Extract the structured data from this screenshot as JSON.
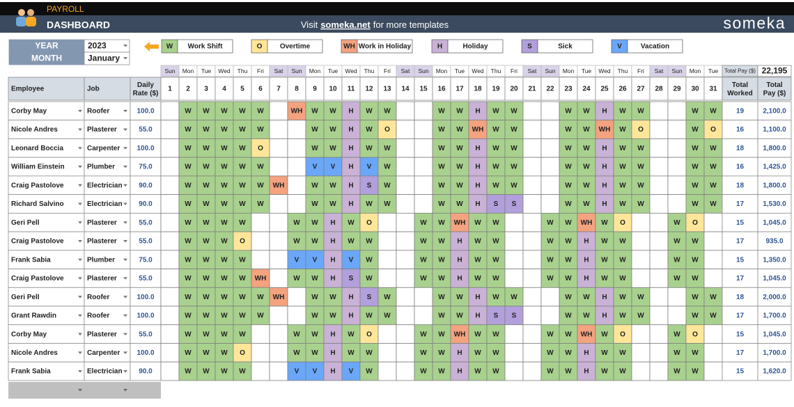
{
  "header": {
    "section": "PAYROLL",
    "title": "DASHBOARD",
    "visit_prefix": "Visit",
    "visit_link": "someka.net",
    "visit_suffix": "for more templates",
    "brand": "someka"
  },
  "filters": {
    "year_label": "YEAR",
    "year": 2023,
    "month_label": "MONTH",
    "month": "January"
  },
  "legend": [
    {
      "code": "W",
      "label": "Work Shift",
      "color": "#a9d18e"
    },
    {
      "code": "O",
      "label": "Overtime",
      "color": "#ffe699"
    },
    {
      "code": "WH",
      "label": "Work in Holiday",
      "color": "#f4a27f"
    },
    {
      "code": "H",
      "label": "Holiday",
      "color": "#c9b2d6"
    },
    {
      "code": "S",
      "label": "Sick",
      "color": "#b1a0db"
    },
    {
      "code": "V",
      "label": "Vacation",
      "color": "#6aa7f8"
    }
  ],
  "summary": {
    "label": "Total Pay ($)",
    "value": "22,195"
  },
  "table": {
    "columns": {
      "employee": "Employee",
      "job": "Job",
      "rate": "Daily Rate ($)",
      "total_worked": "Total Worked",
      "total_pay": "Total Pay ($)"
    },
    "weekend_color": "#d9d2e9",
    "weekdays": [
      "Sun",
      "Mon",
      "Tue",
      "Wed",
      "Thu",
      "Fri",
      "Sat",
      "Sun",
      "Mon",
      "Tue",
      "Wed",
      "Thu",
      "Fri",
      "Sat",
      "Sun",
      "Mon",
      "Tue",
      "Wed",
      "Thu",
      "Fri",
      "Sat",
      "Sun",
      "Mon",
      "Tue",
      "Wed",
      "Thu",
      "Fri",
      "Sat",
      "Sun",
      "Mon",
      "Tue"
    ],
    "days": [
      1,
      2,
      3,
      4,
      5,
      6,
      7,
      8,
      9,
      10,
      11,
      12,
      13,
      14,
      15,
      16,
      17,
      18,
      19,
      20,
      21,
      22,
      23,
      24,
      25,
      26,
      27,
      28,
      29,
      30,
      31
    ],
    "rows": [
      {
        "employee": "Corby May",
        "job": "Roofer",
        "rate": "100.0",
        "days": [
          null,
          "W",
          "W",
          "W",
          "W",
          "W",
          null,
          "WH",
          "W",
          "W",
          "H",
          "W",
          "W",
          null,
          null,
          "W",
          "W",
          "H",
          "W",
          "W",
          null,
          null,
          "W",
          "W",
          "H",
          "W",
          "W",
          null,
          null,
          "W",
          "W"
        ],
        "total_worked": 19,
        "total_pay": "2,100.0"
      },
      {
        "employee": "Nicole Andres",
        "job": "Plasterer",
        "rate": "55.0",
        "days": [
          null,
          "W",
          "W",
          "W",
          "W",
          "W",
          null,
          null,
          "W",
          "W",
          "H",
          "W",
          "O",
          null,
          null,
          "W",
          "W",
          "WH",
          "W",
          "W",
          null,
          null,
          "W",
          "W",
          "WH",
          "W",
          "O",
          null,
          null,
          "W",
          "O"
        ],
        "total_worked": 16,
        "total_pay": "1,100.0"
      },
      {
        "employee": "Leonard Boccia",
        "job": "Carpenter",
        "rate": "100.0",
        "days": [
          null,
          "W",
          "W",
          "W",
          "W",
          "O",
          null,
          null,
          "W",
          "W",
          "H",
          "W",
          "W",
          null,
          null,
          "W",
          "W",
          "H",
          "W",
          "W",
          null,
          null,
          "W",
          "W",
          "H",
          "W",
          "W",
          null,
          null,
          "W",
          "W"
        ],
        "total_worked": 18,
        "total_pay": "1,800.0"
      },
      {
        "employee": "William Einstein",
        "job": "Plumber",
        "rate": "75.0",
        "days": [
          null,
          "W",
          "W",
          "W",
          "W",
          "W",
          null,
          null,
          "V",
          "V",
          "H",
          "V",
          "W",
          null,
          null,
          "W",
          "W",
          "H",
          "W",
          "W",
          null,
          null,
          "W",
          "W",
          "H",
          "W",
          "W",
          null,
          null,
          "W",
          "W"
        ],
        "total_worked": 16,
        "total_pay": "1,425.0"
      },
      {
        "employee": "Craig Pastolove",
        "job": "Electrician",
        "rate": "90.0",
        "days": [
          null,
          "W",
          "W",
          "W",
          "W",
          "W",
          "WH",
          null,
          "W",
          "W",
          "H",
          "S",
          "W",
          null,
          null,
          "W",
          "W",
          "H",
          "W",
          "W",
          null,
          null,
          "W",
          "W",
          "H",
          "W",
          "W",
          null,
          null,
          "W",
          "W"
        ],
        "total_worked": 18,
        "total_pay": "1,800.0"
      },
      {
        "employee": "Richard Salvino",
        "job": "Electrician",
        "rate": "90.0",
        "days": [
          null,
          "W",
          "W",
          "W",
          "W",
          "W",
          null,
          null,
          "W",
          "W",
          "H",
          "W",
          "W",
          null,
          null,
          "W",
          "W",
          "H",
          "S",
          "S",
          null,
          null,
          "W",
          "W",
          "H",
          "W",
          "W",
          null,
          null,
          "W",
          "W"
        ],
        "total_worked": 17,
        "total_pay": "1,530.0"
      },
      {
        "employee": "Geri Pell",
        "job": "Plasterer",
        "rate": "55.0",
        "days": [
          null,
          "W",
          "W",
          "W",
          "W",
          null,
          null,
          "W",
          "W",
          "H",
          "W",
          "O",
          null,
          null,
          "W",
          "W",
          "WH",
          "W",
          "W",
          null,
          null,
          "W",
          "W",
          "WH",
          "W",
          "O",
          null,
          null,
          "W",
          "O",
          null
        ],
        "total_worked": 15,
        "total_pay": "1,045.0"
      },
      {
        "employee": "Craig Pastolove",
        "job": "Plasterer",
        "rate": "55.0",
        "days": [
          null,
          "W",
          "W",
          "W",
          "O",
          null,
          null,
          "W",
          "W",
          "H",
          "W",
          "W",
          null,
          null,
          "W",
          "W",
          "H",
          "W",
          "W",
          null,
          null,
          "W",
          "W",
          "H",
          "W",
          "W",
          null,
          null,
          "W",
          "W",
          null
        ],
        "total_worked": 17,
        "total_pay": "935.0"
      },
      {
        "employee": "Frank Sabia",
        "job": "Plumber",
        "rate": "75.0",
        "days": [
          null,
          "W",
          "W",
          "W",
          "W",
          null,
          null,
          "V",
          "V",
          "H",
          "V",
          "W",
          null,
          null,
          "W",
          "W",
          "H",
          "W",
          "W",
          null,
          null,
          "W",
          "W",
          "H",
          "W",
          "W",
          null,
          null,
          "W",
          "W",
          null
        ],
        "total_worked": 15,
        "total_pay": "1,350.0"
      },
      {
        "employee": "Craig Pastolove",
        "job": "Plasterer",
        "rate": "55.0",
        "days": [
          null,
          "W",
          "W",
          "W",
          "W",
          "WH",
          null,
          "W",
          "W",
          "H",
          "S",
          "W",
          null,
          null,
          "W",
          "W",
          "H",
          "W",
          "W",
          null,
          null,
          "W",
          "W",
          "H",
          "W",
          "W",
          null,
          null,
          "W",
          "W",
          null
        ],
        "total_worked": 17,
        "total_pay": "1,045.0"
      },
      {
        "employee": "Geri Pell",
        "job": "Roofer",
        "rate": "100.0",
        "days": [
          null,
          "W",
          "W",
          "W",
          "W",
          "W",
          "WH",
          null,
          "W",
          "W",
          "H",
          "S",
          "W",
          null,
          null,
          "W",
          "W",
          "H",
          "W",
          "W",
          null,
          null,
          "W",
          "W",
          "H",
          "W",
          "W",
          null,
          null,
          "W",
          "W"
        ],
        "total_worked": 18,
        "total_pay": "2,000.0"
      },
      {
        "employee": "Grant Rawdin",
        "job": "Roofer",
        "rate": "100.0",
        "days": [
          null,
          "W",
          "W",
          "W",
          "W",
          "W",
          null,
          null,
          "W",
          "W",
          "H",
          "W",
          "W",
          null,
          null,
          "W",
          "W",
          "H",
          "S",
          "S",
          null,
          null,
          "W",
          "W",
          "H",
          "W",
          "W",
          null,
          null,
          "W",
          "W"
        ],
        "total_worked": 17,
        "total_pay": "1,700.0"
      },
      {
        "employee": "Corby May",
        "job": "Plasterer",
        "rate": "55.0",
        "days": [
          null,
          "W",
          "W",
          "W",
          "W",
          null,
          null,
          "W",
          "W",
          "H",
          "W",
          "O",
          null,
          null,
          "W",
          "W",
          "WH",
          "W",
          "W",
          null,
          null,
          "W",
          "W",
          "WH",
          "W",
          "O",
          null,
          null,
          "W",
          "O",
          null
        ],
        "total_worked": 15,
        "total_pay": "1,045.0"
      },
      {
        "employee": "Nicole Andres",
        "job": "Carpenter",
        "rate": "100.0",
        "days": [
          null,
          "W",
          "W",
          "W",
          "O",
          null,
          null,
          "W",
          "W",
          "H",
          "W",
          "W",
          null,
          null,
          "W",
          "W",
          "H",
          "W",
          "W",
          null,
          null,
          "W",
          "W",
          "H",
          "W",
          "W",
          null,
          null,
          "W",
          "W",
          null
        ],
        "total_worked": 17,
        "total_pay": "1,700.0"
      },
      {
        "employee": "Frank Sabia",
        "job": "Electrician",
        "rate": "90.0",
        "days": [
          null,
          "W",
          "W",
          "W",
          "W",
          null,
          null,
          "V",
          "V",
          "H",
          "V",
          "W",
          null,
          null,
          "W",
          "W",
          "H",
          "W",
          "W",
          null,
          null,
          "W",
          "W",
          "H",
          "W",
          "W",
          null,
          null,
          "W",
          "W",
          null
        ],
        "total_worked": 15,
        "total_pay": "1,620.0"
      }
    ]
  }
}
